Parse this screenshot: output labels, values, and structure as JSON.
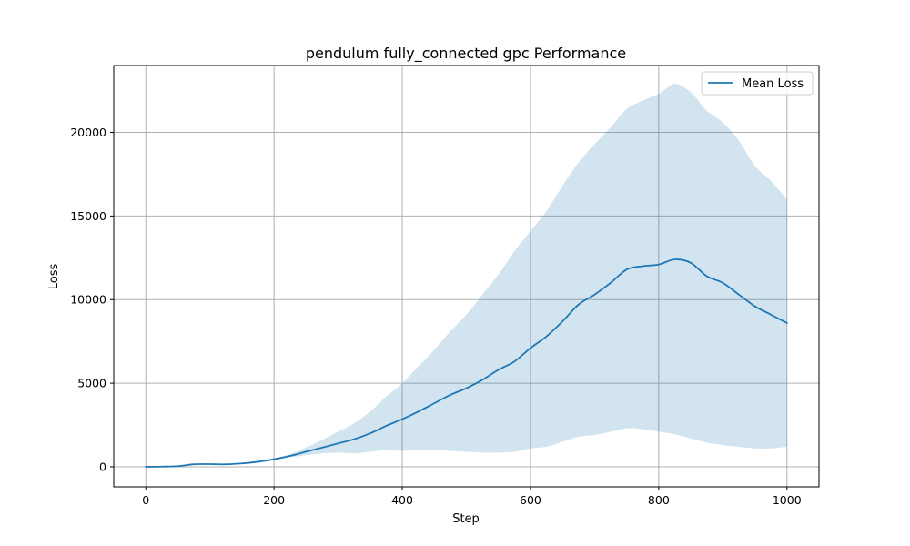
{
  "chart_data": {
    "type": "line",
    "title": "pendulum fully_connected gpc Performance",
    "xlabel": "Step",
    "ylabel": "Loss",
    "xlim": [
      -50,
      1050
    ],
    "ylim": [
      -1200,
      24000
    ],
    "xticks": [
      0,
      200,
      400,
      600,
      800,
      1000
    ],
    "yticks": [
      0,
      5000,
      10000,
      15000,
      20000
    ],
    "grid": true,
    "legend_position": "upper right",
    "colors": {
      "line": "#1f77b4",
      "band": "#1f77b4",
      "grid": "#b0b0b0"
    },
    "series": [
      {
        "name": "Mean Loss",
        "x": [
          0,
          25,
          50,
          75,
          100,
          125,
          150,
          175,
          200,
          225,
          250,
          275,
          300,
          325,
          350,
          375,
          400,
          425,
          450,
          475,
          500,
          525,
          550,
          575,
          600,
          625,
          650,
          675,
          700,
          725,
          750,
          775,
          800,
          825,
          850,
          875,
          900,
          925,
          950,
          975,
          1000
        ],
        "y": [
          0,
          10,
          40,
          150,
          160,
          150,
          200,
          300,
          450,
          650,
          900,
          1150,
          1400,
          1650,
          2000,
          2450,
          2850,
          3300,
          3800,
          4300,
          4700,
          5200,
          5800,
          6300,
          7100,
          7800,
          8700,
          9700,
          10300,
          11000,
          11800,
          12000,
          12100,
          12400,
          12200,
          11400,
          11000,
          10300,
          9600,
          9100,
          8600
        ],
        "lower": [
          0,
          10,
          40,
          150,
          160,
          140,
          180,
          270,
          400,
          560,
          700,
          800,
          850,
          800,
          900,
          1000,
          950,
          1000,
          1000,
          950,
          900,
          850,
          850,
          900,
          1100,
          1200,
          1500,
          1800,
          1900,
          2100,
          2300,
          2250,
          2100,
          1950,
          1700,
          1450,
          1300,
          1200,
          1100,
          1100,
          1200
        ],
        "upper": [
          0,
          10,
          40,
          150,
          160,
          160,
          230,
          340,
          520,
          760,
          1150,
          1600,
          2100,
          2600,
          3300,
          4200,
          5000,
          6000,
          7000,
          8100,
          9100,
          10300,
          11500,
          12900,
          14100,
          15300,
          16800,
          18200,
          19300,
          20300,
          21400,
          21900,
          22300,
          22900,
          22400,
          21300,
          20600,
          19500,
          18000,
          17100,
          16000
        ]
      }
    ]
  }
}
